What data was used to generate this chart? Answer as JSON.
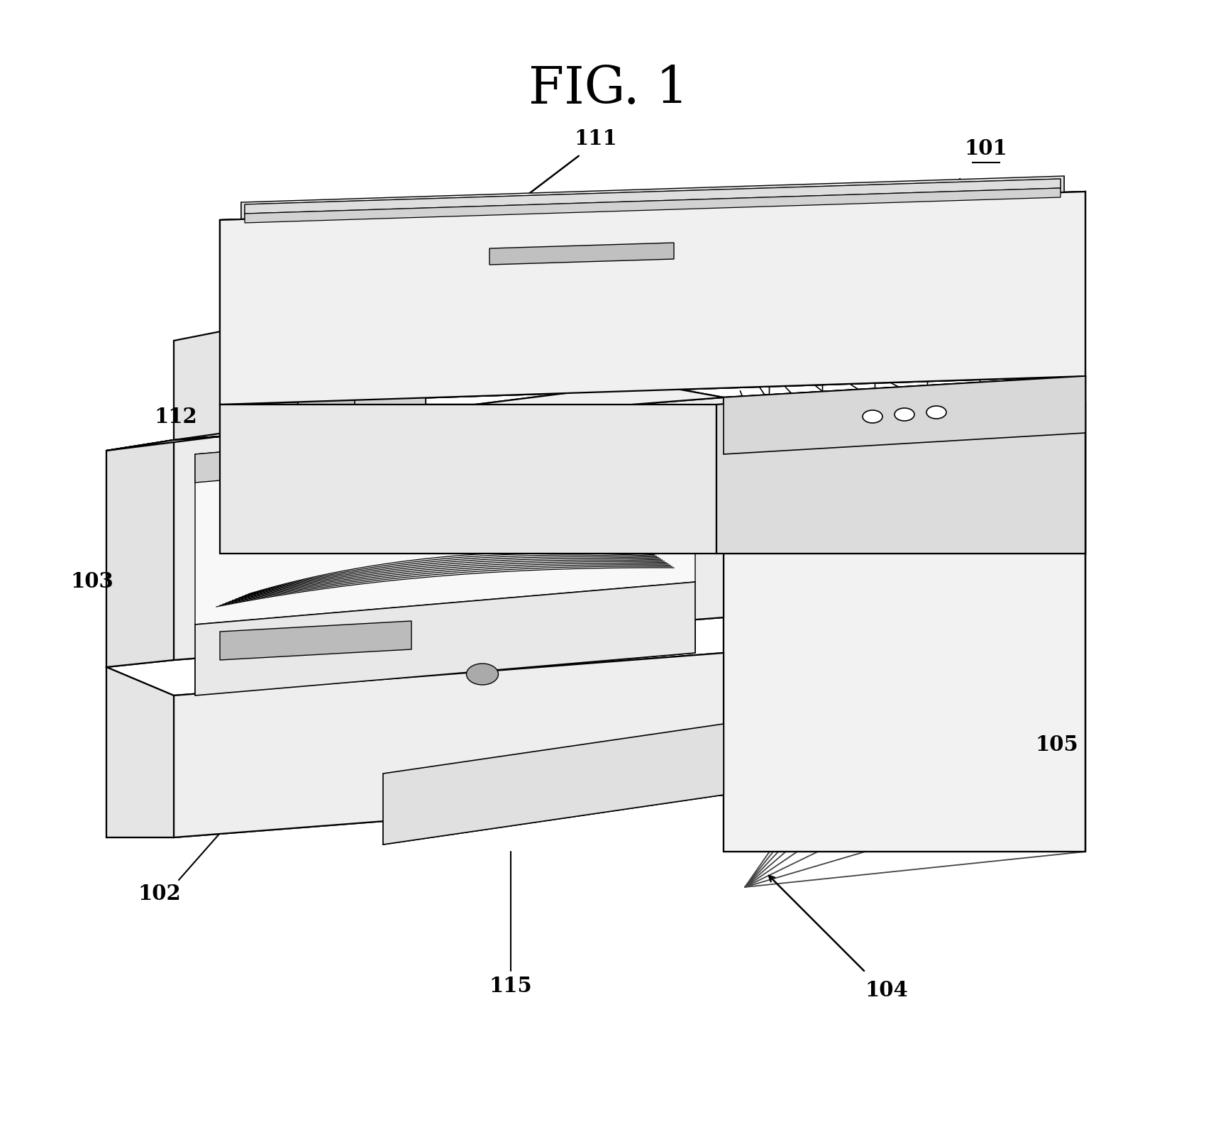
{
  "title": "FIG. 1",
  "bg": "#ffffff",
  "lc": "#000000",
  "lw": 1.6,
  "fig_w": 17.17,
  "fig_h": 15.81,
  "label_fs": 21,
  "title_fs": 52
}
